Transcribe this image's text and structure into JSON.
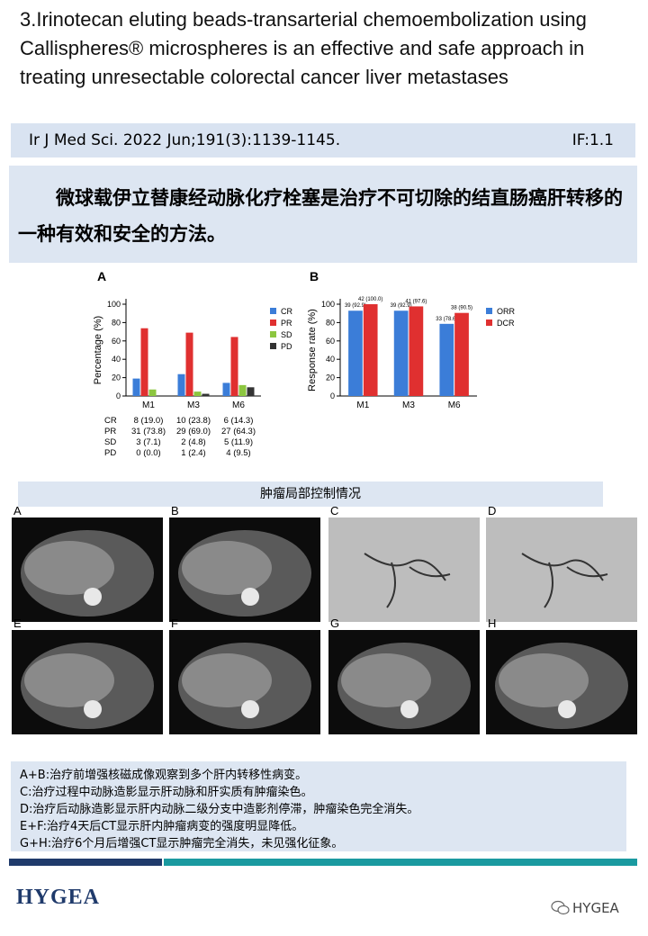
{
  "title": "3.Irinotecan eluting beads-transarterial chemoembolization using Callispheres® microspheres is an effective and safe approach in treating unresectable colorectal cancer liver metastases",
  "citation": {
    "journal": "Ir J Med Sci. 2022 Jun;191(3):1139-1145.",
    "impact_factor": "IF:1.1"
  },
  "summary": "微球载伊立替康经动脉化疗栓塞是治疗不可切除的结直肠癌肝转移的一种有效和安全的方法。",
  "chart_data": [
    {
      "type": "bar",
      "panel": "A",
      "ylabel": "Percentage (%)",
      "categories": [
        "M1",
        "M3",
        "M6"
      ],
      "series": [
        {
          "name": "CR",
          "color": "#3b7dd8",
          "values": [
            19.0,
            23.8,
            14.3
          ]
        },
        {
          "name": "PR",
          "color": "#e03030",
          "values": [
            73.8,
            69.0,
            64.3
          ]
        },
        {
          "name": "SD",
          "color": "#8cc63f",
          "values": [
            7.1,
            4.8,
            11.9
          ]
        },
        {
          "name": "PD",
          "color": "#333333",
          "values": [
            0.0,
            2.4,
            9.5
          ]
        }
      ],
      "ylim": [
        0,
        100
      ],
      "yticks": [
        0,
        20,
        40,
        60,
        80,
        100
      ],
      "table": {
        "rows": [
          [
            "CR",
            "8 (19.0)",
            "10 (23.8)",
            "6 (14.3)"
          ],
          [
            "PR",
            "31 (73.8)",
            "29 (69.0)",
            "27 (64.3)"
          ],
          [
            "SD",
            "3 (7.1)",
            "2 (4.8)",
            "5 (11.9)"
          ],
          [
            "PD",
            "0 (0.0)",
            "1 (2.4)",
            "4 (9.5)"
          ]
        ]
      }
    },
    {
      "type": "bar",
      "panel": "B",
      "ylabel": "Response rate (%)",
      "categories": [
        "M1",
        "M3",
        "M6"
      ],
      "series": [
        {
          "name": "ORR",
          "color": "#3b7dd8",
          "values": [
            92.9,
            92.9,
            78.6
          ],
          "value_labels": [
            "39 (92.9)",
            "39 (92.9)",
            "33 (78.6)"
          ]
        },
        {
          "name": "DCR",
          "color": "#e03030",
          "values": [
            100.0,
            97.6,
            90.5
          ],
          "value_labels": [
            "42 (100.0)",
            "41 (97.6)",
            "38 (90.5)"
          ]
        }
      ],
      "ylim": [
        0,
        100
      ],
      "yticks": [
        0,
        20,
        40,
        60,
        80,
        100
      ]
    }
  ],
  "section_label": "肿瘤局部控制情况",
  "images": {
    "labels": [
      "A",
      "B",
      "C",
      "D",
      "E",
      "F",
      "G",
      "H"
    ]
  },
  "notes": [
    "A+B:治疗前增强核磁成像观察到多个肝内转移性病变。",
    "C:治疗过程中动脉造影显示肝动脉和肝实质有肿瘤染色。",
    "D:治疗后动脉造影显示肝内动脉二级分支中造影剂停滞，肿瘤染色完全消失。",
    "E+F:治疗4天后CT显示肝内肿瘤病变的强度明显降低。",
    "G+H:治疗6个月后增强CT显示肿瘤完全消失，未见强化征象。"
  ],
  "footer": {
    "logo": "HYGEA",
    "account": "HYGEA"
  }
}
